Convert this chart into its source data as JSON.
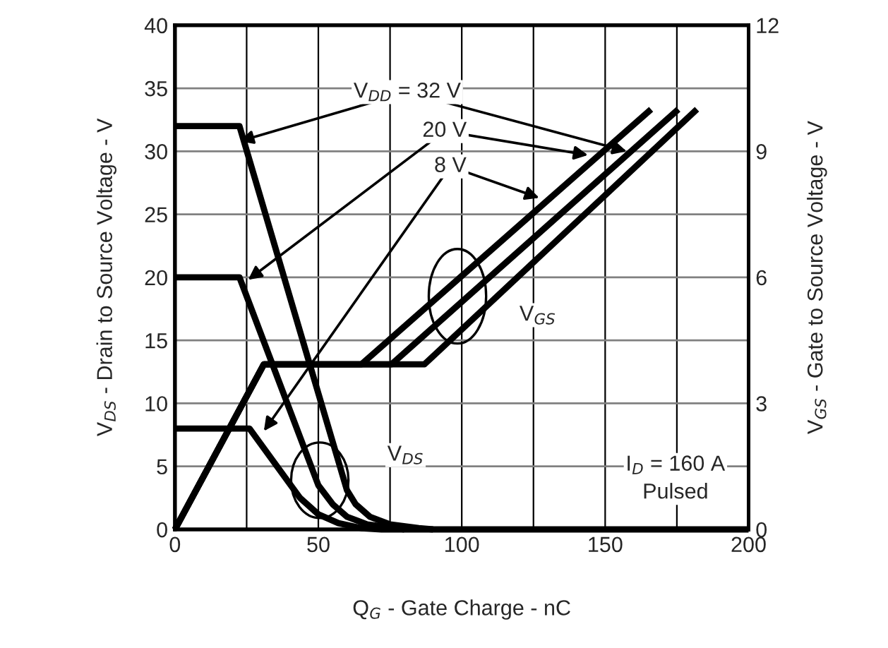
{
  "chart_data": {
    "type": "line",
    "xlabel": "Q$_{G}$ - Gate Charge - nC",
    "ylabel": "V$_{DS}$ - Drain to Source Voltage - V",
    "y2label": "V$_{GS}$ - Gate to Source Voltage - V",
    "xlim": [
      0,
      200
    ],
    "xticks": [
      0,
      {
        "value": 25,
        "label": null
      },
      50,
      {
        "value": 75,
        "label": null
      },
      100,
      {
        "value": 125,
        "label": null
      },
      150,
      {
        "value": 175,
        "label": null
      },
      200
    ],
    "ylim": [
      0,
      40
    ],
    "yticks": [
      0,
      5,
      10,
      15,
      20,
      25,
      30,
      35,
      40
    ],
    "y2lim": [
      0,
      12
    ],
    "y2ticks": [
      0,
      3,
      6,
      9,
      12
    ],
    "grid": true,
    "legend": false,
    "marker": "none",
    "line_style": "solid",
    "series": [
      {
        "color": "#000000",
        "x": [
          0,
          22.5,
          47,
          60,
          63,
          68,
          75,
          85,
          90
        ],
        "values": [
          32,
          32,
          13.1,
          3.1,
          2,
          1,
          0.4,
          0.1,
          0
        ]
      },
      {
        "color": "#000000",
        "x": [
          0,
          22.5,
          34,
          50,
          55,
          60,
          67,
          80
        ],
        "values": [
          20,
          20,
          13.1,
          3.5,
          2,
          1,
          0.4,
          0
        ]
      },
      {
        "color": "#000000",
        "x": [
          0,
          26,
          43.6,
          50,
          57,
          65,
          72,
          200
        ],
        "values": [
          8,
          8,
          2.5,
          1.2,
          0.5,
          0.1,
          0,
          0
        ]
      },
      {
        "color": "#000000",
        "axis": "y2",
        "x": [
          0,
          31,
          65,
          166
        ],
        "values": [
          0,
          3.93,
          3.93,
          10
        ]
      },
      {
        "color": "#000000",
        "axis": "y2",
        "x": [
          0,
          31,
          75.5,
          175.5
        ],
        "values": [
          0,
          3.93,
          3.93,
          10
        ]
      },
      {
        "color": "#000000",
        "axis": "y2",
        "x": [
          0,
          31,
          87,
          182
        ],
        "values": [
          0,
          3.93,
          3.93,
          10
        ]
      }
    ],
    "annotations": [
      {
        "text": "V$_{DD}$ = 32 V",
        "x": 22.5,
        "y": 30.8
      },
      {
        "text": "20 V",
        "x": 25.5,
        "y": 19.8
      },
      {
        "text": "8 V",
        "x": 31,
        "y": 7.8
      },
      "V$_{GS}$",
      "V$_{DS}$",
      "I$_{D}$ = 160 A\nPulsed"
    ]
  }
}
